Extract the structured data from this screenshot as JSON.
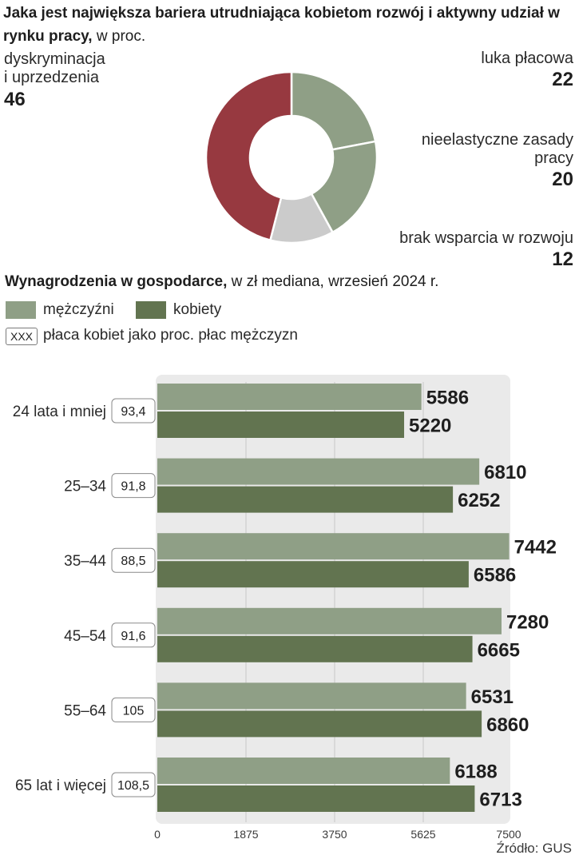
{
  "colors": {
    "men": "#8f9f86",
    "women": "#627450",
    "discrimination": "#973940",
    "development": "#cbcbcb",
    "grid": "#c8c8c8"
  },
  "donut": {
    "title_bold": "Jaka jest największa bariera utrudniająca kobietom rozwój i aktywny udział w rynku pracy,",
    "title_rest": " w proc.",
    "segments": [
      {
        "label": "luka płacowa",
        "value": 22
      },
      {
        "label": "nieelastyczne zasady pracy",
        "value": 20
      },
      {
        "label": "brak wsparcia w rozwoju",
        "value": 12
      },
      {
        "label": "dyskryminacja\ni uprzedzenia",
        "value": 46
      }
    ]
  },
  "bars": {
    "title_bold": "Wynagrodzenia w gospodarce,",
    "title_rest": " w zł mediana, wrzesień 2024 r.",
    "legend": {
      "men": "mężczyźni",
      "women": "kobiety",
      "ratio_box": "XXX",
      "ratio_text": "płaca kobiet jako proc. płac mężczyzn"
    },
    "source": "Źródło: GUS"
  },
  "chart_data": {
    "type": "bar",
    "orientation": "horizontal",
    "title": "Wynagrodzenia w gospodarce, w zł mediana, wrzesień 2024 r.",
    "categories": [
      "24 lata i mniej",
      "25–34",
      "35–44",
      "45–54",
      "55–64",
      "65 lat i więcej"
    ],
    "ratios": [
      "93,4",
      "91,8",
      "88,5",
      "91,6",
      "105",
      "108,5"
    ],
    "series": [
      {
        "name": "mężczyźni",
        "values": [
          5586,
          6810,
          7442,
          7280,
          6531,
          6188
        ]
      },
      {
        "name": "kobiety",
        "values": [
          5220,
          6252,
          6586,
          6665,
          6860,
          6713
        ]
      }
    ],
    "xlim": [
      0,
      7500
    ],
    "ticks": [
      {
        "value": 0,
        "label": "0"
      },
      {
        "value": 1875,
        "label": "1875"
      },
      {
        "value": 3750,
        "label": "3750"
      },
      {
        "value": 5625,
        "label": "5625"
      },
      {
        "value": 7500,
        "label": "7500"
      }
    ]
  }
}
